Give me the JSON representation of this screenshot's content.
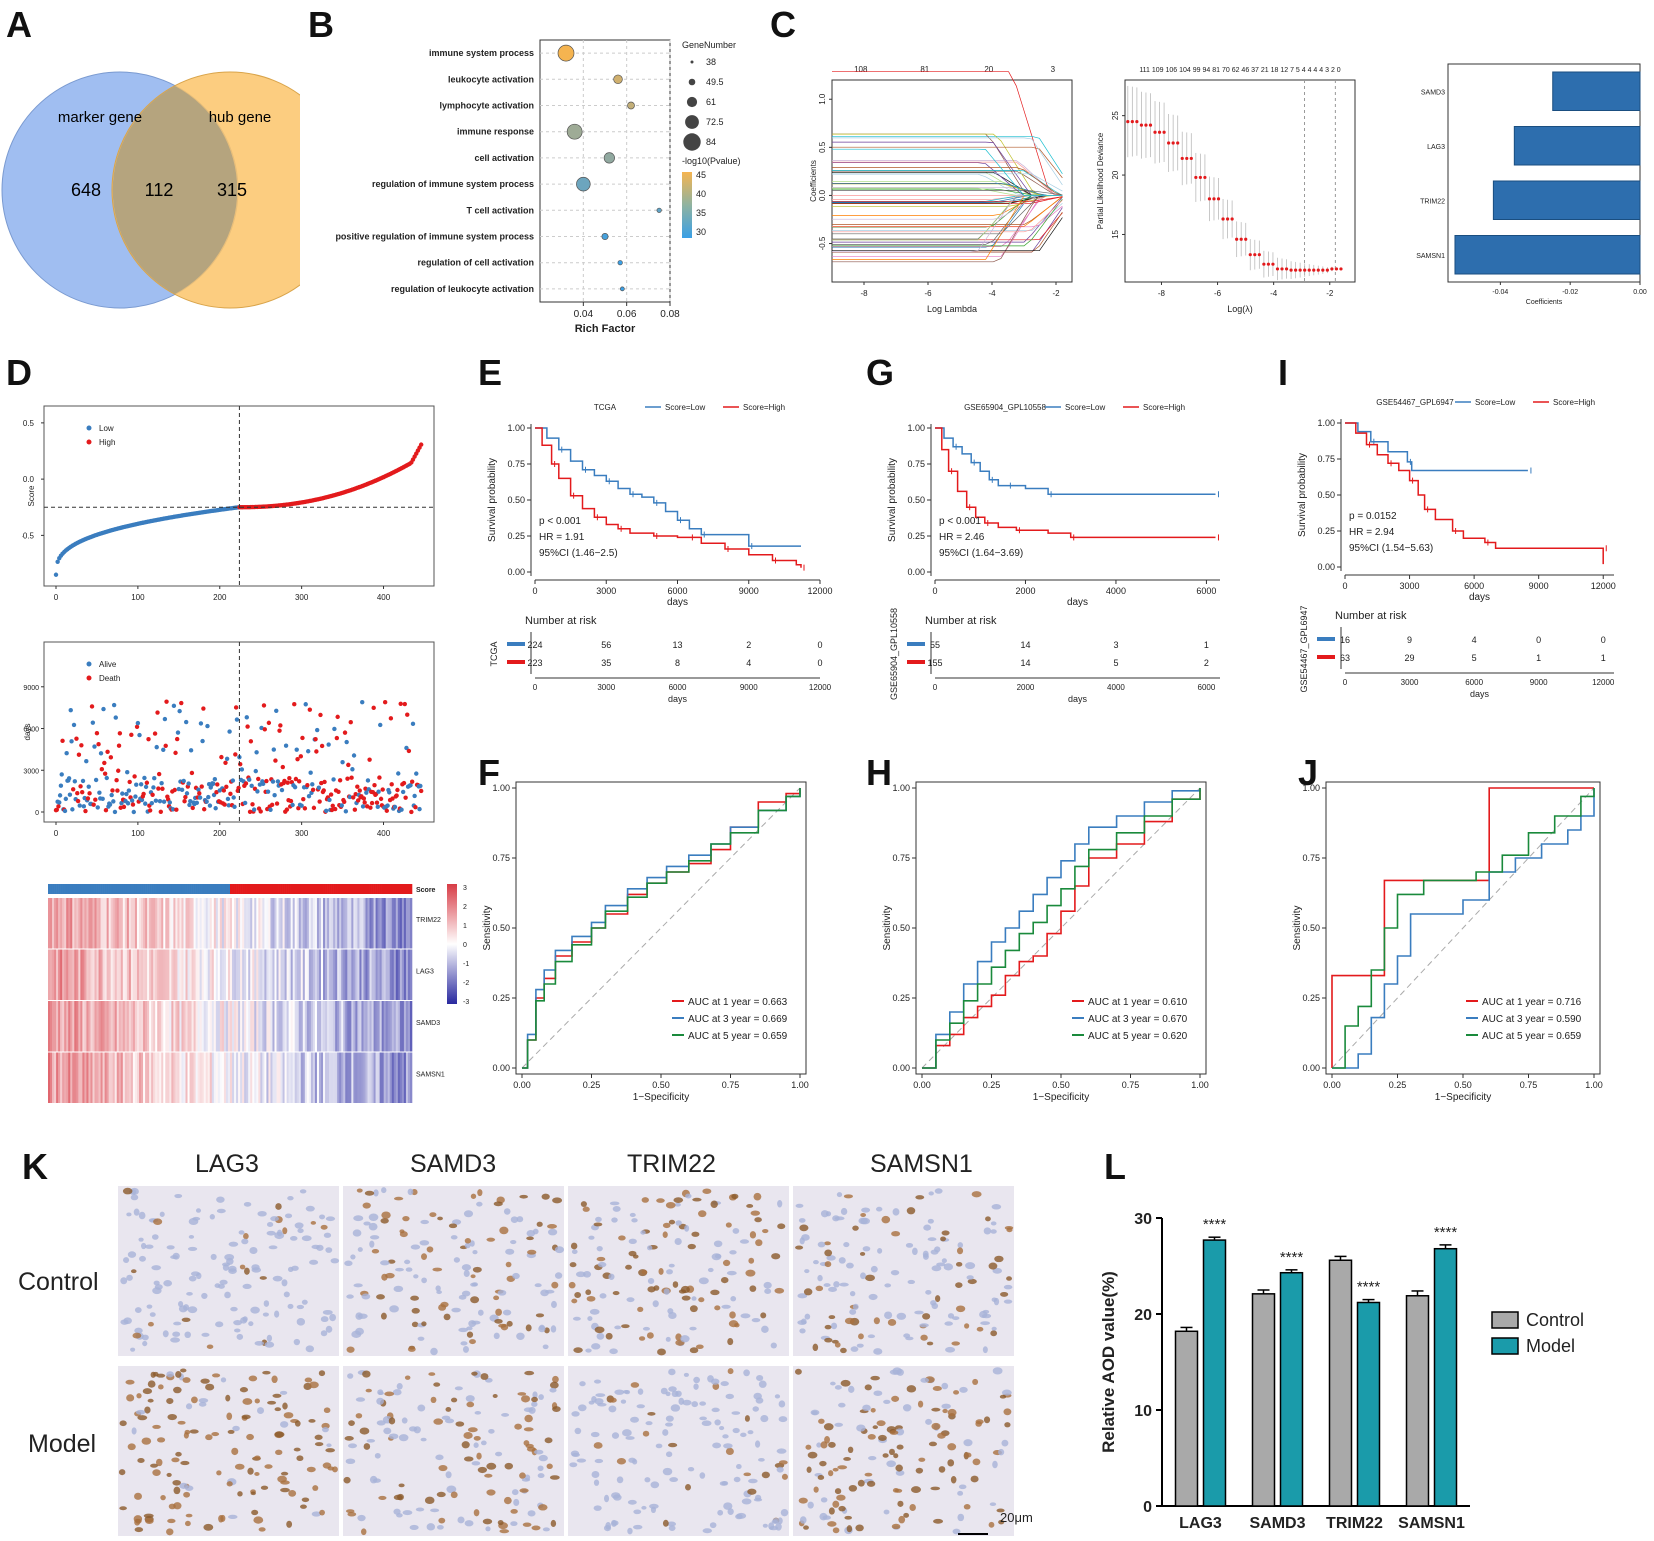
{
  "panel_labels": {
    "A": "A",
    "B": "B",
    "C": "C",
    "D": "D",
    "E": "E",
    "F": "F",
    "G": "G",
    "H": "H",
    "I": "I",
    "J": "J",
    "K": "K",
    "L": "L"
  },
  "colors": {
    "blue": "#3a7dbf",
    "red": "#e31a1c",
    "green": "#1a8a3c",
    "venn_blue": "#8fb3ee",
    "venn_orange": "#fcc46a",
    "bar_blue": "#2d6eae",
    "gray_bar": "#a9a9a9",
    "teal_bar": "#1a9baa"
  },
  "venn": {
    "left_label": "marker gene",
    "right_label": "hub gene",
    "left_only": "648",
    "overlap": "112",
    "right_only": "315"
  },
  "chart_data": [
    {
      "id": "B",
      "type": "scatter",
      "xlabel": "Rich Factor",
      "xlim": [
        0.02,
        0.08
      ],
      "xticks": [
        "0.04",
        "0.06",
        "0.08"
      ],
      "terms": [
        "immune system process",
        "leukocyte activation",
        "lymphocyte activation",
        "immune response",
        "cell activation",
        "regulation of immune system process",
        "T cell activation",
        "positive regulation of immune system process",
        "regulation of cell activation",
        "regulation of leukocyte activation"
      ],
      "rich_factor": [
        0.032,
        0.056,
        0.062,
        0.036,
        0.052,
        0.04,
        0.075,
        0.05,
        0.057,
        0.058
      ],
      "gene_number": [
        84,
        55,
        48,
        80,
        62,
        75,
        38,
        45,
        38,
        36
      ],
      "neg_log_p": [
        45,
        42,
        41,
        38,
        37,
        34,
        33,
        31,
        30,
        30
      ],
      "size_legend_title": "GeneNumber",
      "size_legend": [
        "38",
        "49.5",
        "61",
        "72.5",
        "84"
      ],
      "color_legend_title": "-log10(Pvalue)",
      "color_legend": [
        "45",
        "40",
        "35",
        "30"
      ]
    },
    {
      "id": "C1",
      "type": "line",
      "xlabel": "Log Lambda",
      "ylabel": "Coefficients",
      "xticks": [
        "-8",
        "-6",
        "-4",
        "-2"
      ],
      "yticks": [
        "-0.5",
        "0.0",
        "0.5",
        "1.0"
      ],
      "top_ticks": [
        "108",
        "81",
        "20",
        "3"
      ]
    },
    {
      "id": "C2",
      "type": "line",
      "xlabel": "Log(λ)",
      "ylabel": "Partial Likelihood Deviance",
      "xticks": [
        "-8",
        "-6",
        "-4",
        "-2"
      ],
      "yticks": [
        "15",
        "20",
        "25"
      ],
      "top_ticks": "111 109 106 104 99 94 81 70 62 46 37 21 18 12 7 5 4 4 4 4 3 2 0",
      "curve_y": [
        24.5,
        24.2,
        23.6,
        22.7,
        21.4,
        19.8,
        18.0,
        16.3,
        14.6,
        13.3,
        12.5,
        12.1,
        12.0,
        12.0,
        12.0,
        12.1
      ]
    },
    {
      "id": "C3",
      "type": "bar",
      "xlabel": "Coefficients",
      "categories": [
        "SAMD3",
        "LAG3",
        "TRIM22",
        "SAMSN1"
      ],
      "values": [
        -0.025,
        -0.036,
        -0.042,
        -0.053
      ],
      "xlim": [
        -0.055,
        0.0
      ],
      "xticks": [
        "-0.04",
        "-0.02",
        "0.00"
      ]
    },
    {
      "id": "D1",
      "type": "scatter",
      "ylabel": "Score",
      "xticks": [
        "0",
        "100",
        "200",
        "300",
        "400"
      ],
      "yticks": [
        "-0.5",
        "0.0",
        "0.5"
      ],
      "legend": [
        "Low",
        "High"
      ],
      "n": 447,
      "cutoff_index": 224,
      "cutoff_score": -0.25
    },
    {
      "id": "D2",
      "type": "scatter",
      "ylabel": "days",
      "xticks": [
        "0",
        "100",
        "200",
        "300",
        "400"
      ],
      "yticks": [
        "0",
        "3000",
        "6000",
        "9000"
      ],
      "legend": [
        "Alive",
        "Death"
      ]
    },
    {
      "id": "D3",
      "type": "heatmap",
      "rows": [
        "TRIM22",
        "LAG3",
        "SAMD3",
        "SAMSN1"
      ],
      "annotation": "Score",
      "scale": [
        "3",
        "2",
        "1",
        "0",
        "-1",
        "-2",
        "-3"
      ]
    },
    {
      "id": "E",
      "type": "line",
      "title": "TCGA",
      "legend": [
        "Score=Low",
        "Score=High"
      ],
      "ylabel": "Survival probability",
      "xlabel": "days",
      "xticks": [
        "0",
        "3000",
        "6000",
        "9000",
        "12000"
      ],
      "yticks": [
        "0.00",
        "0.25",
        "0.50",
        "0.75",
        "1.00"
      ],
      "xlim": [
        0,
        12000
      ],
      "low": {
        "x": [
          0,
          500,
          1000,
          1500,
          2000,
          2500,
          3000,
          3500,
          4000,
          4500,
          5000,
          5500,
          6000,
          6500,
          7000,
          8000,
          9000,
          11200
        ],
        "y": [
          1.0,
          0.93,
          0.85,
          0.77,
          0.71,
          0.67,
          0.63,
          0.58,
          0.54,
          0.52,
          0.48,
          0.42,
          0.36,
          0.3,
          0.26,
          0.26,
          0.18,
          0.18
        ]
      },
      "high": {
        "x": [
          0,
          300,
          700,
          1000,
          1500,
          2000,
          2500,
          3000,
          3500,
          4000,
          5000,
          6000,
          6500,
          7000,
          8000,
          9000,
          10000,
          11000,
          11200
        ],
        "y": [
          1.0,
          0.88,
          0.75,
          0.65,
          0.53,
          0.44,
          0.38,
          0.33,
          0.3,
          0.27,
          0.25,
          0.24,
          0.24,
          0.2,
          0.16,
          0.12,
          0.08,
          0.05,
          0.03
        ]
      },
      "pval": "p < 0.001",
      "hr": "HR = 1.91",
      "ci": "95%CI (1.46−2.5)",
      "risk_title": "Number at risk",
      "risk_label": "TCGA",
      "risk_low": [
        "224",
        "56",
        "13",
        "2",
        "0"
      ],
      "risk_high": [
        "223",
        "35",
        "8",
        "4",
        "0"
      ]
    },
    {
      "id": "G",
      "type": "line",
      "title": "GSE65904_GPL10558",
      "legend": [
        "Score=Low",
        "Score=High"
      ],
      "ylabel": "Survival probability",
      "xlabel": "days",
      "xticks": [
        "0",
        "2000",
        "4000",
        "6000"
      ],
      "yticks": [
        "0.00",
        "0.25",
        "0.50",
        "0.75",
        "1.00"
      ],
      "xlim": [
        0,
        6300
      ],
      "low": {
        "x": [
          0,
          200,
          400,
          600,
          800,
          1000,
          1200,
          1400,
          1600,
          2000,
          2500,
          3000,
          6200
        ],
        "y": [
          1.0,
          0.93,
          0.87,
          0.82,
          0.76,
          0.7,
          0.64,
          0.6,
          0.6,
          0.58,
          0.54,
          0.54,
          0.54
        ]
      },
      "high": {
        "x": [
          0,
          150,
          300,
          500,
          700,
          900,
          1100,
          1400,
          1800,
          2500,
          3000,
          4000,
          6200
        ],
        "y": [
          1.0,
          0.85,
          0.7,
          0.56,
          0.45,
          0.38,
          0.34,
          0.31,
          0.29,
          0.27,
          0.24,
          0.24,
          0.24
        ]
      },
      "pval": "p < 0.001",
      "hr": "HR = 2.46",
      "ci": "95%CI (1.64−3.69)",
      "risk_title": "Number at risk",
      "risk_label": "GSE65904_GPL10558",
      "risk_low": [
        "55",
        "14",
        "3",
        "1"
      ],
      "risk_high": [
        "155",
        "14",
        "5",
        "2"
      ]
    },
    {
      "id": "I",
      "type": "line",
      "title": "GSE54467_GPL6947",
      "legend": [
        "Score=Low",
        "Score=High"
      ],
      "ylabel": "Survival probability",
      "xlabel": "days",
      "xticks": [
        "0",
        "3000",
        "6000",
        "9000",
        "12000"
      ],
      "yticks": [
        "0.00",
        "0.25",
        "0.50",
        "0.75",
        "1.00"
      ],
      "xlim": [
        0,
        12500
      ],
      "low": {
        "x": [
          0,
          600,
          1200,
          2000,
          2900,
          3100,
          8500
        ],
        "y": [
          1.0,
          0.94,
          0.87,
          0.8,
          0.73,
          0.67,
          0.67
        ]
      },
      "high": {
        "x": [
          0,
          500,
          1000,
          1500,
          2000,
          2500,
          3000,
          3400,
          3700,
          4200,
          5000,
          5500,
          6500,
          7000,
          12000,
          12000
        ],
        "y": [
          1.0,
          0.93,
          0.85,
          0.78,
          0.72,
          0.67,
          0.6,
          0.5,
          0.4,
          0.33,
          0.25,
          0.2,
          0.17,
          0.13,
          0.13,
          0.02
        ]
      },
      "pval": "p = 0.0152",
      "hr": "HR = 2.94",
      "ci": "95%CI (1.54−5.63)",
      "risk_title": "Number at risk",
      "risk_label": "GSE54467_GPL6947",
      "risk_low": [
        "16",
        "9",
        "4",
        "0",
        "0"
      ],
      "risk_high": [
        "63",
        "29",
        "5",
        "1",
        "1"
      ]
    },
    {
      "id": "F",
      "type": "line",
      "xlabel": "1−Specificity",
      "ylabel": "Sensitivity",
      "ticks": [
        "0.00",
        "0.25",
        "0.50",
        "0.75",
        "1.00"
      ],
      "legend": [
        "AUC at 1 year = 0.663",
        "AUC at 3 year = 0.669",
        "AUC at 5 year = 0.659"
      ],
      "series": [
        {
          "name": "1 year",
          "x": [
            0,
            0.02,
            0.05,
            0.08,
            0.12,
            0.18,
            0.25,
            0.3,
            0.38,
            0.45,
            0.52,
            0.6,
            0.68,
            0.75,
            0.85,
            0.95,
            1
          ],
          "y": [
            0,
            0.1,
            0.25,
            0.32,
            0.4,
            0.45,
            0.5,
            0.55,
            0.62,
            0.66,
            0.7,
            0.73,
            0.78,
            0.86,
            0.95,
            0.98,
            1
          ]
        },
        {
          "name": "3 year",
          "x": [
            0,
            0.02,
            0.05,
            0.08,
            0.12,
            0.18,
            0.25,
            0.3,
            0.38,
            0.45,
            0.52,
            0.6,
            0.68,
            0.75,
            0.85,
            0.95,
            1
          ],
          "y": [
            0,
            0.12,
            0.28,
            0.35,
            0.42,
            0.47,
            0.52,
            0.58,
            0.64,
            0.68,
            0.72,
            0.76,
            0.8,
            0.86,
            0.92,
            0.97,
            1
          ]
        },
        {
          "name": "5 year",
          "x": [
            0,
            0.02,
            0.05,
            0.08,
            0.12,
            0.18,
            0.25,
            0.3,
            0.38,
            0.45,
            0.52,
            0.6,
            0.68,
            0.75,
            0.85,
            0.95,
            1
          ],
          "y": [
            0,
            0.1,
            0.24,
            0.3,
            0.38,
            0.44,
            0.5,
            0.56,
            0.61,
            0.66,
            0.7,
            0.74,
            0.8,
            0.84,
            0.92,
            0.97,
            1
          ]
        }
      ]
    },
    {
      "id": "H",
      "type": "line",
      "xlabel": "1−Specificity",
      "ylabel": "Sensitivity",
      "ticks": [
        "0.00",
        "0.25",
        "0.50",
        "0.75",
        "1.00"
      ],
      "legend": [
        "AUC at 1 year = 0.610",
        "AUC at 3 year = 0.670",
        "AUC at 5 year = 0.620"
      ],
      "series": [
        {
          "name": "1 year",
          "x": [
            0,
            0.05,
            0.1,
            0.15,
            0.2,
            0.25,
            0.3,
            0.35,
            0.4,
            0.45,
            0.5,
            0.55,
            0.6,
            0.7,
            0.8,
            0.9,
            1
          ],
          "y": [
            0,
            0.08,
            0.12,
            0.18,
            0.22,
            0.26,
            0.33,
            0.38,
            0.4,
            0.48,
            0.56,
            0.65,
            0.75,
            0.8,
            0.88,
            0.96,
            1
          ]
        },
        {
          "name": "3 year",
          "x": [
            0,
            0.05,
            0.1,
            0.15,
            0.2,
            0.25,
            0.3,
            0.35,
            0.4,
            0.45,
            0.5,
            0.55,
            0.6,
            0.7,
            0.8,
            0.9,
            1
          ],
          "y": [
            0,
            0.12,
            0.2,
            0.3,
            0.38,
            0.45,
            0.5,
            0.56,
            0.62,
            0.68,
            0.74,
            0.8,
            0.86,
            0.9,
            0.95,
            0.99,
            1
          ]
        },
        {
          "name": "5 year",
          "x": [
            0,
            0.05,
            0.1,
            0.15,
            0.2,
            0.25,
            0.3,
            0.35,
            0.4,
            0.45,
            0.5,
            0.55,
            0.6,
            0.7,
            0.8,
            0.9,
            1
          ],
          "y": [
            0,
            0.1,
            0.16,
            0.24,
            0.3,
            0.36,
            0.42,
            0.48,
            0.52,
            0.58,
            0.64,
            0.72,
            0.78,
            0.84,
            0.9,
            0.96,
            1
          ]
        }
      ]
    },
    {
      "id": "J",
      "type": "line",
      "xlabel": "1−Specificity",
      "ylabel": "Sensitivity",
      "ticks": [
        "0.00",
        "0.25",
        "0.50",
        "0.75",
        "1.00"
      ],
      "legend": [
        "AUC at 1 year = 0.716",
        "AUC at 3 year = 0.590",
        "AUC at 5 year = 0.659"
      ],
      "series": [
        {
          "name": "1 year",
          "x": [
            0,
            0.0,
            0.2,
            0.2,
            0.6,
            0.6,
            1.0
          ],
          "y": [
            0,
            0.33,
            0.33,
            0.67,
            0.67,
            1.0,
            1.0
          ]
        },
        {
          "name": "3 year",
          "x": [
            0,
            0.1,
            0.15,
            0.2,
            0.25,
            0.3,
            0.4,
            0.5,
            0.6,
            0.7,
            0.8,
            0.9,
            0.95,
            1
          ],
          "y": [
            0,
            0.05,
            0.18,
            0.3,
            0.4,
            0.55,
            0.55,
            0.6,
            0.7,
            0.75,
            0.8,
            0.85,
            0.9,
            1
          ]
        },
        {
          "name": "5 year",
          "x": [
            0,
            0.05,
            0.1,
            0.15,
            0.2,
            0.25,
            0.35,
            0.45,
            0.55,
            0.65,
            0.75,
            0.85,
            0.95,
            1
          ],
          "y": [
            0,
            0.15,
            0.22,
            0.35,
            0.5,
            0.62,
            0.67,
            0.67,
            0.7,
            0.76,
            0.84,
            0.9,
            0.97,
            1
          ]
        }
      ]
    },
    {
      "id": "L",
      "type": "bar",
      "ylabel": "Relative AOD value(%)",
      "categories": [
        "LAG3",
        "SAMD3",
        "TRIM22",
        "SAMSN1"
      ],
      "series": [
        {
          "name": "Control",
          "values": [
            18.2,
            22.1,
            25.6,
            21.9
          ],
          "errors": [
            0.4,
            0.4,
            0.4,
            0.5
          ]
        },
        {
          "name": "Model",
          "values": [
            27.7,
            24.3,
            21.2,
            26.8
          ],
          "errors": [
            0.3,
            0.3,
            0.3,
            0.4
          ]
        }
      ],
      "ylim": [
        0,
        30
      ],
      "yticks": [
        "0",
        "10",
        "20",
        "30"
      ],
      "significance": [
        "****",
        "****",
        "****",
        "****"
      ]
    }
  ],
  "ihc": {
    "columns": [
      "LAG3",
      "SAMD3",
      "TRIM22",
      "SAMSN1"
    ],
    "rows": [
      "Control",
      "Model"
    ],
    "scale_bar": "20μm"
  }
}
